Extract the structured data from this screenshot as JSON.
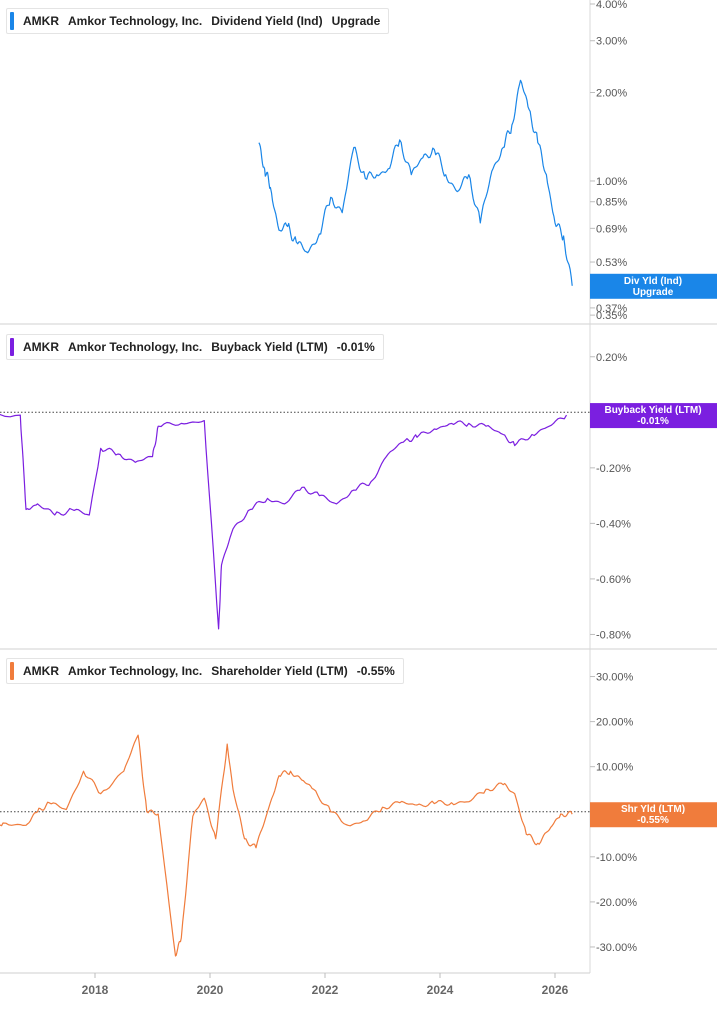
{
  "panels": [
    {
      "ticker": "AMKR",
      "company": "Amkor Technology, Inc.",
      "metric": "Dividend Yield (Ind)",
      "value": "Upgrade",
      "color": "#1a86e8",
      "tag_line1": "Div Yld (Ind)",
      "tag_line2": "Upgrade"
    },
    {
      "ticker": "AMKR",
      "company": "Amkor Technology, Inc.",
      "metric": "Buyback Yield (LTM)",
      "value": "-0.01%",
      "color": "#7b1fe0",
      "tag_line1": "Buyback Yield (LTM)",
      "tag_line2": "-0.01%"
    },
    {
      "ticker": "AMKR",
      "company": "Amkor Technology, Inc.",
      "metric": "Shareholder Yield (LTM)",
      "value": "-0.55%",
      "color": "#f07c3c",
      "tag_line1": "Shr Yld (LTM)",
      "tag_line2": "-0.55%"
    }
  ],
  "x_axis_labels": [
    "2018",
    "2020",
    "2022",
    "2024",
    "2026"
  ],
  "chart_data": [
    {
      "type": "line",
      "title": "AMKR Amkor Technology, Inc. Dividend Yield (Ind)",
      "y_scale": "log",
      "ylim": [
        0.35,
        4.0
      ],
      "y_ticks": [
        "4.00%",
        "3.00%",
        "2.00%",
        "1.00%",
        "0.85%",
        "0.69%",
        "0.53%",
        "0.37%"
      ],
      "y_tick_values": [
        4.0,
        3.0,
        2.0,
        1.0,
        0.85,
        0.69,
        0.53,
        0.37
      ],
      "series": [
        {
          "x": [
            2020.85,
            2020.95,
            2021.05,
            2021.2,
            2021.35,
            2021.5,
            2021.7,
            2021.9,
            2022.1,
            2022.3,
            2022.5,
            2022.7,
            2022.9,
            2023.1,
            2023.3,
            2023.5,
            2023.7,
            2023.9,
            2024.1,
            2024.3,
            2024.5,
            2024.7,
            2024.9,
            2025.1,
            2025.25,
            2025.4,
            2025.55,
            2025.7,
            2025.85,
            2026.0,
            2026.15,
            2026.3
          ],
          "y": [
            1.35,
            1.1,
            0.95,
            0.68,
            0.7,
            0.62,
            0.57,
            0.66,
            0.88,
            0.78,
            1.3,
            1.02,
            1.05,
            1.1,
            1.38,
            1.05,
            1.2,
            1.28,
            1.05,
            0.92,
            1.05,
            0.72,
            1.08,
            1.3,
            1.55,
            2.2,
            1.75,
            1.35,
            1.05,
            0.72,
            0.65,
            0.44
          ]
        }
      ]
    },
    {
      "type": "line",
      "title": "AMKR Amkor Technology, Inc. Buyback Yield (LTM)",
      "ylim": [
        -0.82,
        0.3
      ],
      "y_ticks": [
        "0.35%",
        "0.20%",
        "-0.20%",
        "-0.40%",
        "-0.60%",
        "-0.80%"
      ],
      "y_tick_values": [
        0.35,
        0.2,
        -0.2,
        -0.4,
        -0.6,
        -0.8
      ],
      "series": [
        {
          "x": [
            2016.0,
            2016.7,
            2016.8,
            2017.0,
            2017.3,
            2017.6,
            2017.9,
            2018.1,
            2018.4,
            2018.7,
            2019.0,
            2019.1,
            2019.5,
            2019.9,
            2020.15,
            2020.2,
            2020.4,
            2020.7,
            2021.0,
            2021.3,
            2021.6,
            2021.9,
            2022.2,
            2022.5,
            2022.8,
            2023.1,
            2023.4,
            2023.6,
            2023.9,
            2024.2,
            2024.5,
            2024.8,
            2025.1,
            2025.3,
            2025.6,
            2025.9,
            2026.2
          ],
          "y": [
            0.0,
            -0.01,
            -0.35,
            -0.33,
            -0.37,
            -0.35,
            -0.37,
            -0.13,
            -0.15,
            -0.18,
            -0.16,
            -0.05,
            -0.04,
            -0.03,
            -0.78,
            -0.55,
            -0.42,
            -0.35,
            -0.31,
            -0.33,
            -0.27,
            -0.3,
            -0.33,
            -0.28,
            -0.25,
            -0.15,
            -0.1,
            -0.09,
            -0.06,
            -0.04,
            -0.04,
            -0.05,
            -0.08,
            -0.12,
            -0.08,
            -0.05,
            -0.01
          ]
        }
      ]
    },
    {
      "type": "line",
      "title": "AMKR Amkor Technology, Inc. Shareholder Yield (LTM)",
      "ylim": [
        -34,
        35
      ],
      "y_ticks": [
        "30.00%",
        "20.00%",
        "10.00%",
        "-10.00%",
        "-20.00%",
        "-30.00%"
      ],
      "y_tick_values": [
        30,
        20,
        10,
        -10,
        -20,
        -30
      ],
      "series": [
        {
          "x": [
            2016.0,
            2016.2,
            2016.4,
            2016.8,
            2017.0,
            2017.2,
            2017.5,
            2017.8,
            2018.1,
            2018.5,
            2018.75,
            2018.9,
            2019.1,
            2019.4,
            2019.5,
            2019.7,
            2019.9,
            2020.1,
            2020.3,
            2020.4,
            2020.6,
            2020.8,
            2021.0,
            2021.2,
            2021.4,
            2021.6,
            2021.8,
            2022.1,
            2022.4,
            2022.7,
            2023.0,
            2023.3,
            2023.6,
            2023.9,
            2024.2,
            2024.5,
            2024.8,
            2025.1,
            2025.3,
            2025.5,
            2025.7,
            2025.9,
            2026.1,
            2026.3
          ],
          "y": [
            3.5,
            -4.5,
            -2.5,
            -3,
            0,
            2,
            0.5,
            9,
            4,
            9,
            17,
            0,
            -0.5,
            -32,
            -28,
            -1,
            3,
            -6,
            15,
            5,
            -6,
            -8,
            0,
            8,
            9,
            7,
            5,
            0,
            -3,
            -2,
            1,
            2,
            1.5,
            1.8,
            2,
            2.2,
            5,
            6,
            4,
            -5,
            -7,
            -4,
            -0.5,
            -0.55
          ]
        }
      ]
    }
  ]
}
